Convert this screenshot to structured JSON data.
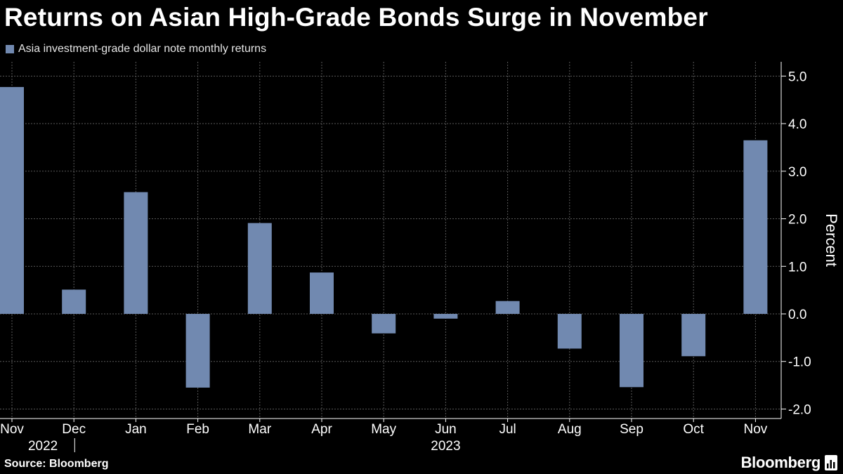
{
  "header": {
    "title": "Returns on Asian High-Grade Bonds Surge in November"
  },
  "legend": {
    "label": "Asia investment-grade dollar note monthly returns"
  },
  "footer": {
    "source": "Source: Bloomberg",
    "brand": "Bloomberg",
    "brand_icon": "bloomberg-chart-icon"
  },
  "colors": {
    "background": "#000000",
    "bar": "#7189b0",
    "grid": "#5a5a5a",
    "axis": "#ffffff"
  },
  "chart_data": {
    "type": "bar",
    "categories": [
      "Nov",
      "Dec",
      "Jan",
      "Feb",
      "Mar",
      "Apr",
      "May",
      "Jun",
      "Jul",
      "Aug",
      "Sep",
      "Oct",
      "Nov"
    ],
    "year_labels": [
      {
        "label": "2022",
        "start": 0,
        "end": 1
      },
      {
        "label": "2023",
        "start": 2,
        "end": 12
      }
    ],
    "series": [
      {
        "name": "Asia investment-grade dollar note monthly returns",
        "values": [
          4.77,
          0.51,
          2.56,
          -1.55,
          1.91,
          0.87,
          -0.41,
          -0.1,
          0.27,
          -0.73,
          -1.54,
          -0.89,
          3.65
        ]
      }
    ],
    "ylabel": "Percent",
    "ylim": [
      -2.2,
      5.3
    ],
    "yticks": [
      5.0,
      4.0,
      3.0,
      2.0,
      1.0,
      0.0,
      -1.0,
      -2.0
    ],
    "ytick_labels": [
      "5.0",
      "4.0",
      "3.0",
      "2.0",
      "1.0",
      "0.0",
      "-1.0",
      "-2.0"
    ],
    "y_axis_position": "right",
    "grid": true
  }
}
